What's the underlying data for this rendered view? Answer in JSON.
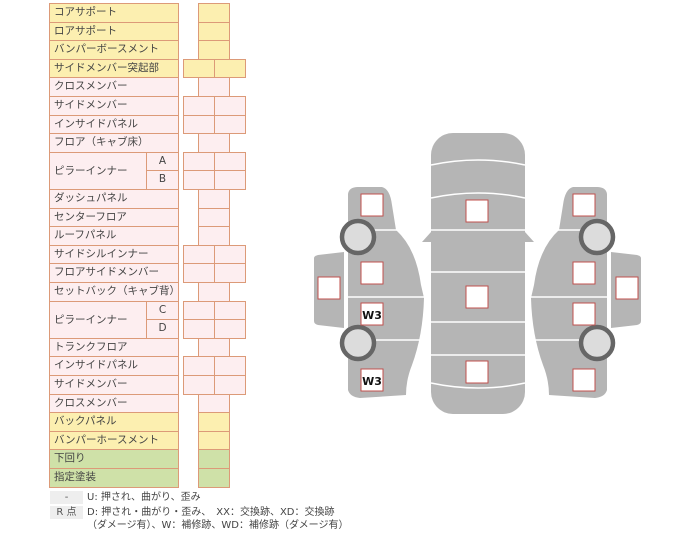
{
  "colors": {
    "yellow": "#fcefb0",
    "pink": "#fdeef0",
    "green": "#cfe1a8",
    "border": "#dc9a78",
    "body_gray": "#b5b5b5",
    "mark_border": "#c0504d"
  },
  "rows": [
    {
      "label": "コアサポート",
      "color": "yellow",
      "cells": 1
    },
    {
      "label": "ロアサポート",
      "color": "yellow",
      "cells": 1
    },
    {
      "label": "バンパーボースメント",
      "color": "yellow",
      "cells": 1
    },
    {
      "label": "サイドメンバー突起部",
      "color": "yellow",
      "cells": 2
    },
    {
      "label": "クロスメンバー",
      "color": "pink",
      "cells": 1
    },
    {
      "label": "サイドメンバー",
      "color": "pink",
      "cells": 2
    },
    {
      "label": "インサイドパネル",
      "color": "pink",
      "cells": 2
    },
    {
      "label": "フロア（キャブ床）",
      "color": "pink",
      "cells": 1
    },
    {
      "label": "ピラーインナー",
      "sub": "A",
      "color": "pink",
      "cells": 2,
      "span": 2
    },
    {
      "label": "",
      "sub": "B",
      "color": "pink",
      "cells": 2
    },
    {
      "label": "ダッシュパネル",
      "color": "pink",
      "cells": 1
    },
    {
      "label": "センターフロア",
      "color": "pink",
      "cells": 1
    },
    {
      "label": "ルーフパネル",
      "color": "pink",
      "cells": 1
    },
    {
      "label": "サイドシルインナー",
      "color": "pink",
      "cells": 2
    },
    {
      "label": "フロアサイドメンバー",
      "color": "pink",
      "cells": 2
    },
    {
      "label": "セットバック（キャブ背）",
      "color": "pink",
      "cells": 1
    },
    {
      "label": "ピラーインナー",
      "sub": "C",
      "color": "pink",
      "cells": 2,
      "span": 2
    },
    {
      "label": "",
      "sub": "D",
      "color": "pink",
      "cells": 2
    },
    {
      "label": "トランクフロア",
      "color": "pink",
      "cells": 1
    },
    {
      "label": "インサイドパネル",
      "color": "pink",
      "cells": 2
    },
    {
      "label": "サイドメンバー",
      "color": "pink",
      "cells": 2
    },
    {
      "label": "クロスメンバー",
      "color": "pink",
      "cells": 1
    },
    {
      "label": "バックパネル",
      "color": "yellow",
      "cells": 1
    },
    {
      "label": "バンパーホースメント",
      "color": "yellow",
      "cells": 1
    },
    {
      "label": "下回り",
      "color": "green",
      "cells": 1
    },
    {
      "label": "指定塗装",
      "color": "green",
      "cells": 1
    }
  ],
  "diagram": {
    "marks": {
      "left_rocker": "W3",
      "left_rear": "W3"
    }
  },
  "legend": [
    {
      "key": "-",
      "text": "U: 押され、曲がり、歪み"
    },
    {
      "key": "R 点",
      "text": "D: 押され・曲がり・歪み、　XX：交換跡、XD：交換跡",
      "text2": "（ダメージ有）、W：補修跡、WD：補修跡（ダメージ有）"
    }
  ]
}
